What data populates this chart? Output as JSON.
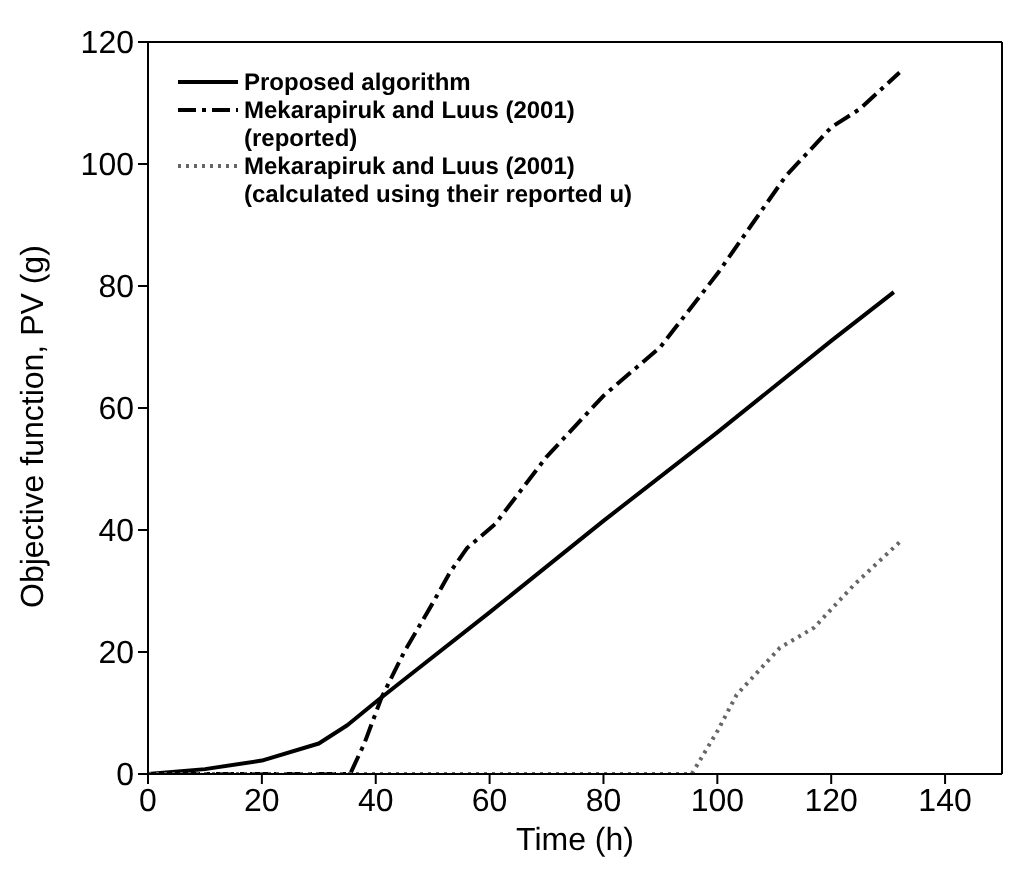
{
  "chart_data": {
    "type": "line",
    "xlabel": "Time (h)",
    "ylabel": "Objective function, PV (g)",
    "xlim": [
      0,
      150
    ],
    "xticks": [
      0,
      20,
      40,
      60,
      80,
      100,
      120,
      140
    ],
    "ylim": [
      0,
      120
    ],
    "yticks": [
      0,
      20,
      40,
      60,
      80,
      100,
      120
    ],
    "legend": "top left",
    "marker": "none",
    "series": [
      {
        "name": "Proposed algorithm",
        "color": "#000000",
        "line_style": "solid",
        "x": [
          0,
          10,
          20,
          30,
          35,
          40,
          45,
          60,
          80,
          100,
          120,
          131
        ],
        "values": [
          0,
          0.8,
          2.2,
          5,
          8,
          11.8,
          15.5,
          26.5,
          41.5,
          56,
          71,
          79
        ]
      },
      {
        "name": "Mekarapiruk and Luus (2001) (reported)",
        "color": "#000000",
        "line_style": "dashdot",
        "x": [
          0,
          35.5,
          38,
          41,
          45,
          50,
          53,
          56,
          61,
          70,
          80,
          90,
          100,
          106,
          112,
          120,
          125,
          132
        ],
        "values": [
          0,
          0,
          5,
          12.5,
          20,
          28,
          33,
          37,
          41,
          52,
          62,
          70,
          82,
          90,
          98,
          106,
          109,
          115
        ]
      },
      {
        "name": "Mekarapiruk and Luus (2001) (calculated using their reported u)",
        "color": "#666666",
        "line_style": "dotted",
        "x": [
          0,
          95.5,
          100,
          103.4,
          111,
          117,
          124,
          132
        ],
        "values": [
          0,
          0,
          7,
          13,
          20.7,
          24,
          31,
          38
        ]
      }
    ]
  }
}
